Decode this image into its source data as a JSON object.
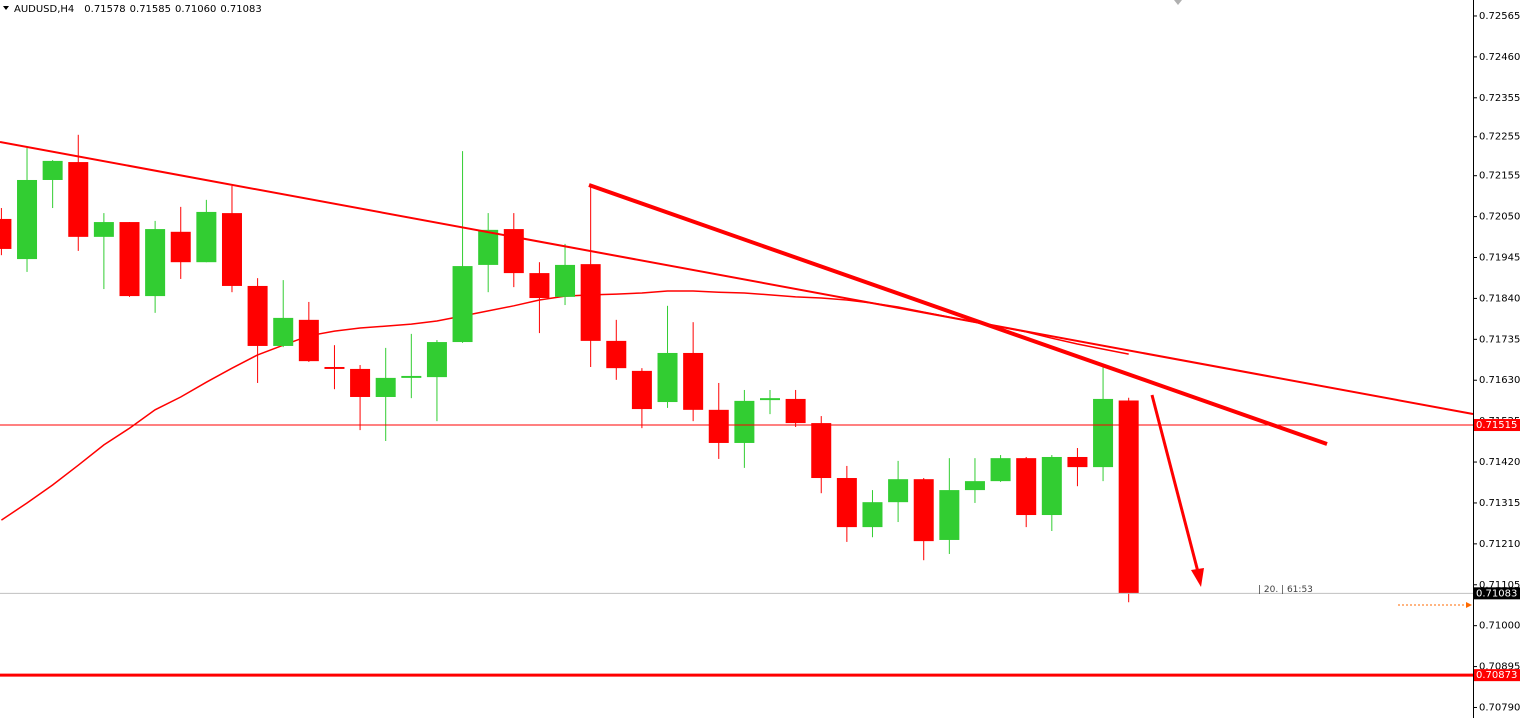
{
  "chart_data": {
    "type": "candlestick",
    "symbol": "AUDUSD,H4",
    "quote_labels": [
      "0.71578",
      "0.71585",
      "0.71060",
      "0.71083"
    ],
    "up_color": "#32cd32",
    "down_color": "#ff0000",
    "open": [
      0.72044,
      0.71941,
      0.72144,
      0.7219,
      0.71998,
      0.72036,
      0.71846,
      0.72011,
      0.71933,
      0.72059,
      0.71872,
      0.71718,
      0.71785,
      0.71664,
      0.71659,
      0.71587,
      0.71636,
      0.71638,
      0.71728,
      0.71926,
      0.72018,
      0.71905,
      0.71844,
      0.71928,
      0.71731,
      0.71654,
      0.71574,
      0.717,
      0.71554,
      0.71469,
      0.71579,
      0.71582,
      0.7152,
      0.71379,
      0.71253,
      0.71317,
      0.71376,
      0.7122,
      0.71348,
      0.71371,
      0.7143,
      0.71284,
      0.71433,
      0.71407,
      0.71578
    ],
    "high": [
      0.72072,
      0.72226,
      0.72195,
      0.7226,
      0.72059,
      0.72036,
      0.72039,
      0.72075,
      0.72093,
      0.72129,
      0.71892,
      0.71887,
      0.71831,
      0.7172,
      0.71669,
      0.71713,
      0.71749,
      0.71733,
      0.72218,
      0.72059,
      0.72059,
      0.71933,
      0.7198,
      0.72131,
      0.71785,
      0.71661,
      0.71821,
      0.71779,
      0.71623,
      0.71605,
      0.71605,
      0.71605,
      0.71538,
      0.7141,
      0.71348,
      0.71423,
      0.71379,
      0.7143,
      0.7143,
      0.71438,
      0.71433,
      0.71438,
      0.71456,
      0.71669,
      0.71585
    ],
    "low": [
      0.71951,
      0.71908,
      0.72072,
      0.71962,
      0.71864,
      0.71844,
      0.71803,
      0.7189,
      0.71933,
      0.71856,
      0.71623,
      0.71715,
      0.71677,
      0.71607,
      0.71502,
      0.71474,
      0.71584,
      0.71525,
      0.71726,
      0.71856,
      0.71869,
      0.71751,
      0.71823,
      0.71664,
      0.71631,
      0.71507,
      0.71559,
      0.71525,
      0.71428,
      0.71405,
      0.71543,
      0.7151,
      0.7134,
      0.71215,
      0.71227,
      0.71266,
      0.71168,
      0.71184,
      0.71315,
      0.71369,
      0.71253,
      0.71243,
      0.71358,
      0.71371,
      0.7106
    ],
    "close": [
      0.71967,
      0.72144,
      0.72193,
      0.71998,
      0.72036,
      0.71846,
      0.72018,
      0.71933,
      0.72062,
      0.71872,
      0.71718,
      0.7179,
      0.71679,
      0.71659,
      0.71587,
      0.71636,
      0.71641,
      0.71728,
      0.71923,
      0.72016,
      0.71905,
      0.71841,
      0.71926,
      0.71731,
      0.71661,
      0.71556,
      0.717,
      0.71554,
      0.71469,
      0.71577,
      0.71584,
      0.7152,
      0.71379,
      0.71253,
      0.71317,
      0.71376,
      0.71217,
      0.71348,
      0.71371,
      0.7143,
      0.71284,
      0.71433,
      0.71407,
      0.71582,
      0.71083
    ],
    "moving_average": {
      "color": "#ff0000",
      "values": [
        0.71271,
        0.71315,
        0.71361,
        0.71412,
        0.71464,
        0.71507,
        0.71554,
        0.71587,
        0.71625,
        0.71661,
        0.71695,
        0.7172,
        0.71744,
        0.71756,
        0.71764,
        0.71769,
        0.71774,
        0.71782,
        0.71795,
        0.71808,
        0.71821,
        0.71836,
        0.71846,
        0.71849,
        0.71851,
        0.71854,
        0.71859,
        0.71859,
        0.71856,
        0.71854,
        0.71849,
        0.71844,
        0.71841,
        0.71836,
        0.71828,
        0.71818,
        0.71805,
        0.71792,
        0.71779,
        0.71767,
        0.71754,
        0.71738,
        0.71723,
        0.7171,
        0.71697
      ]
    },
    "levels": [
      {
        "value": 0.71515,
        "color": "#ff0000",
        "width": 1
      },
      {
        "value": 0.71083,
        "color": "#c0c0c0",
        "label_color": "#000000",
        "width": 1
      },
      {
        "value": 0.70873,
        "color": "#ff0000",
        "width": 3
      }
    ],
    "timer_label": "| 20. | 61:53",
    "ylim": [
      0.70763,
      0.72606
    ],
    "yticks": [
      0.72565,
      {
        "value": 0.7246,
        "label": "0.72460"
      },
      0.72355,
      0.72255,
      0.72155,
      {
        "value": 0.7205,
        "label": "0.72050"
      },
      0.71945,
      {
        "value": 0.7184,
        "label": "0.71840"
      },
      0.71735,
      {
        "value": 0.7163,
        "label": "0.71630"
      },
      0.71525,
      {
        "value": 0.7142,
        "label": "0.71420"
      },
      0.71315,
      {
        "value": 0.7121,
        "label": "0.71210"
      },
      0.71105,
      {
        "value": 0.71,
        "label": "0.71000"
      },
      0.70895,
      {
        "value": 0.7079,
        "label": "0.70790"
      }
    ]
  }
}
